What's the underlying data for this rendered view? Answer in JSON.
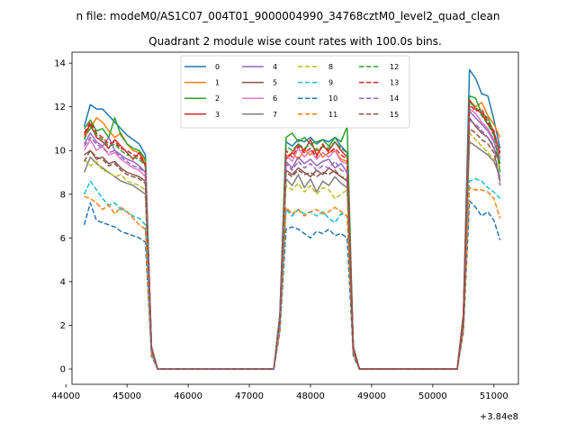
{
  "figure": {
    "suptitle": "n file: modeM0/AS1C07_004T01_9000004990_34768cztM0_level2_quad_clean",
    "title": "Quadrant 2 module wise count rates with 100.0s bins.",
    "offset_label": "+3.84e8"
  },
  "chart_data": {
    "type": "line",
    "title": "Quadrant 2 module wise count rates with 100.0s bins.",
    "xlabel": "",
    "ylabel": "",
    "x_offset": 384000000,
    "xlim": [
      44100,
      51400
    ],
    "ylim": [
      -0.7,
      14.5
    ],
    "xticks": [
      44000,
      45000,
      46000,
      47000,
      48000,
      49000,
      50000,
      51000
    ],
    "xtick_labels": [
      "44000",
      "45000",
      "46000",
      "47000",
      "48000",
      "49000",
      "50000",
      "51000"
    ],
    "yticks": [
      0,
      2,
      4,
      6,
      8,
      10,
      12,
      14
    ],
    "ytick_labels": [
      "0",
      "2",
      "4",
      "6",
      "8",
      "10",
      "12",
      "14"
    ],
    "grid": false,
    "legend": {
      "placement": "top-center",
      "columns": 4
    },
    "x": [
      44300,
      44400,
      44500,
      44600,
      44700,
      44800,
      44900,
      45000,
      45100,
      45200,
      45300,
      45400,
      45500,
      45600,
      45700,
      45800,
      45900,
      46000,
      46100,
      46200,
      46300,
      46400,
      46500,
      46600,
      46700,
      46800,
      46900,
      47000,
      47100,
      47200,
      47300,
      47400,
      47500,
      47600,
      47700,
      47800,
      47900,
      48000,
      48100,
      48200,
      48300,
      48400,
      48500,
      48600,
      48700,
      48800,
      48900,
      49000,
      49100,
      49200,
      49300,
      49400,
      49500,
      49600,
      49700,
      49800,
      49900,
      50000,
      50100,
      50200,
      50300,
      50400,
      50500,
      50600,
      50700,
      50800,
      50900,
      51000,
      51100
    ],
    "series": [
      {
        "name": "0",
        "color": "#1f77b4",
        "dash": "solid",
        "values": [
          11.1,
          12.1,
          11.9,
          11.9,
          11.6,
          11.3,
          11.0,
          10.7,
          10.5,
          10.3,
          9.8,
          1.0,
          0,
          0,
          0,
          0,
          0,
          0,
          0,
          0,
          0,
          0,
          0,
          0,
          0,
          0,
          0,
          0,
          0,
          0,
          0,
          0,
          2.5,
          10.4,
          10.2,
          10.5,
          10.4,
          10.6,
          10.3,
          10.5,
          10.4,
          10.6,
          10.2,
          9.9,
          1.0,
          0,
          0,
          0,
          0,
          0,
          0,
          0,
          0,
          0,
          0,
          0,
          0,
          0,
          0,
          0,
          0,
          0,
          2.5,
          13.7,
          13.3,
          12.6,
          12.5,
          11.4,
          10.1
        ]
      },
      {
        "name": "1",
        "color": "#ff7f0e",
        "dash": "solid",
        "values": [
          10.6,
          11.0,
          11.5,
          11.3,
          10.9,
          10.6,
          10.8,
          10.3,
          10.0,
          9.9,
          9.5,
          1.0,
          0,
          0,
          0,
          0,
          0,
          0,
          0,
          0,
          0,
          0,
          0,
          0,
          0,
          0,
          0,
          0,
          0,
          0,
          0,
          0,
          2.4,
          9.7,
          9.9,
          9.6,
          10.0,
          9.8,
          10.1,
          9.7,
          9.9,
          10.0,
          9.6,
          9.5,
          1.0,
          0,
          0,
          0,
          0,
          0,
          0,
          0,
          0,
          0,
          0,
          0,
          0,
          0,
          0,
          0,
          0,
          0,
          2.4,
          12.3,
          12.0,
          12.2,
          11.6,
          11.2,
          10.6
        ]
      },
      {
        "name": "2",
        "color": "#2ca02c",
        "dash": "solid",
        "values": [
          11.0,
          11.4,
          10.9,
          11.0,
          10.6,
          11.5,
          10.7,
          10.3,
          10.1,
          10.0,
          9.6,
          1.0,
          0,
          0,
          0,
          0,
          0,
          0,
          0,
          0,
          0,
          0,
          0,
          0,
          0,
          0,
          0,
          0,
          0,
          0,
          0,
          0,
          2.5,
          10.6,
          10.8,
          10.4,
          10.6,
          10.3,
          10.4,
          10.5,
          10.2,
          10.6,
          10.4,
          11.1,
          1.0,
          0,
          0,
          0,
          0,
          0,
          0,
          0,
          0,
          0,
          0,
          0,
          0,
          0,
          0,
          0,
          0,
          0,
          2.5,
          12.5,
          12.4,
          11.7,
          11.5,
          10.8,
          9.0
        ]
      },
      {
        "name": "3",
        "color": "#d62728",
        "dash": "solid",
        "values": [
          10.7,
          11.2,
          10.6,
          10.4,
          10.1,
          10.5,
          10.2,
          9.9,
          9.6,
          9.9,
          9.3,
          1.0,
          0,
          0,
          0,
          0,
          0,
          0,
          0,
          0,
          0,
          0,
          0,
          0,
          0,
          0,
          0,
          0,
          0,
          0,
          0,
          0,
          2.4,
          9.6,
          9.9,
          10.3,
          10.0,
          10.5,
          9.8,
          10.2,
          10.0,
          10.4,
          10.0,
          9.7,
          1.0,
          0,
          0,
          0,
          0,
          0,
          0,
          0,
          0,
          0,
          0,
          0,
          0,
          0,
          0,
          0,
          0,
          0,
          2.4,
          12.3,
          11.9,
          11.7,
          11.2,
          10.8,
          9.9
        ]
      },
      {
        "name": "4",
        "color": "#9467bd",
        "dash": "solid",
        "values": [
          10.3,
          10.8,
          10.4,
          10.2,
          10.6,
          10.0,
          9.8,
          9.6,
          9.5,
          9.3,
          9.0,
          1.0,
          0,
          0,
          0,
          0,
          0,
          0,
          0,
          0,
          0,
          0,
          0,
          0,
          0,
          0,
          0,
          0,
          0,
          0,
          0,
          0,
          2.3,
          9.5,
          9.2,
          9.7,
          9.4,
          9.6,
          9.3,
          9.5,
          9.6,
          9.2,
          9.4,
          9.0,
          1.0,
          0,
          0,
          0,
          0,
          0,
          0,
          0,
          0,
          0,
          0,
          0,
          0,
          0,
          0,
          0,
          0,
          0,
          2.3,
          11.8,
          11.5,
          11.2,
          10.9,
          10.4,
          9.6
        ]
      },
      {
        "name": "5",
        "color": "#8c564b",
        "dash": "solid",
        "values": [
          9.8,
          10.0,
          9.6,
          9.7,
          9.4,
          9.5,
          9.2,
          9.0,
          8.9,
          8.8,
          8.6,
          0.9,
          0,
          0,
          0,
          0,
          0,
          0,
          0,
          0,
          0,
          0,
          0,
          0,
          0,
          0,
          0,
          0,
          0,
          0,
          0,
          0,
          2.2,
          9.1,
          8.9,
          9.2,
          9.0,
          8.8,
          9.1,
          8.9,
          9.2,
          9.0,
          8.8,
          8.6,
          0.9,
          0,
          0,
          0,
          0,
          0,
          0,
          0,
          0,
          0,
          0,
          0,
          0,
          0,
          0,
          0,
          0,
          0,
          2.2,
          11.5,
          11.1,
          10.8,
          10.6,
          10.1,
          9.4
        ]
      },
      {
        "name": "6",
        "color": "#e377c2",
        "dash": "solid",
        "values": [
          10.0,
          10.5,
          10.0,
          10.2,
          9.8,
          9.9,
          9.6,
          9.4,
          9.2,
          9.1,
          8.8,
          0.9,
          0,
          0,
          0,
          0,
          0,
          0,
          0,
          0,
          0,
          0,
          0,
          0,
          0,
          0,
          0,
          0,
          0,
          0,
          0,
          0,
          2.3,
          9.8,
          9.5,
          10.1,
          9.7,
          10.0,
          9.6,
          9.9,
          9.7,
          10.0,
          9.5,
          9.4,
          0.9,
          0,
          0,
          0,
          0,
          0,
          0,
          0,
          0,
          0,
          0,
          0,
          0,
          0,
          0,
          0,
          0,
          0,
          2.3,
          11.9,
          11.7,
          11.3,
          11.0,
          10.5,
          9.7
        ]
      },
      {
        "name": "7",
        "color": "#7f7f7f",
        "dash": "solid",
        "values": [
          9.0,
          9.7,
          9.4,
          9.2,
          9.0,
          8.8,
          8.6,
          8.5,
          8.4,
          8.2,
          8.0,
          0.8,
          0,
          0,
          0,
          0,
          0,
          0,
          0,
          0,
          0,
          0,
          0,
          0,
          0,
          0,
          0,
          0,
          0,
          0,
          0,
          0,
          2.1,
          8.7,
          8.4,
          8.9,
          8.3,
          8.7,
          8.1,
          8.6,
          8.4,
          8.8,
          8.5,
          8.3,
          0.8,
          0,
          0,
          0,
          0,
          0,
          0,
          0,
          0,
          0,
          0,
          0,
          0,
          0,
          0,
          0,
          0,
          0,
          2.1,
          10.4,
          10.2,
          10.0,
          9.8,
          9.5,
          8.8
        ]
      },
      {
        "name": "8",
        "color": "#bcbd22",
        "dash": "dashed",
        "values": [
          9.6,
          9.3,
          9.5,
          9.1,
          9.0,
          8.8,
          8.9,
          8.6,
          8.5,
          8.4,
          8.2,
          0.8,
          0,
          0,
          0,
          0,
          0,
          0,
          0,
          0,
          0,
          0,
          0,
          0,
          0,
          0,
          0,
          0,
          0,
          0,
          0,
          0,
          2.1,
          8.4,
          8.2,
          8.5,
          8.1,
          8.4,
          8.0,
          8.3,
          8.2,
          7.8,
          8.0,
          8.2,
          0.8,
          0,
          0,
          0,
          0,
          0,
          0,
          0,
          0,
          0,
          0,
          0,
          0,
          0,
          0,
          0,
          0,
          0,
          2.1,
          10.8,
          10.5,
          10.2,
          9.9,
          9.6,
          9.3
        ]
      },
      {
        "name": "9",
        "color": "#17becf",
        "dash": "dashed",
        "values": [
          8.0,
          8.6,
          8.2,
          7.8,
          7.5,
          7.6,
          7.3,
          7.2,
          7.0,
          6.9,
          6.6,
          0.7,
          0,
          0,
          0,
          0,
          0,
          0,
          0,
          0,
          0,
          0,
          0,
          0,
          0,
          0,
          0,
          0,
          0,
          0,
          0,
          0,
          1.9,
          7.3,
          7.0,
          7.3,
          7.1,
          7.2,
          7.0,
          7.2,
          6.9,
          6.7,
          7.1,
          7.0,
          0.7,
          0,
          0,
          0,
          0,
          0,
          0,
          0,
          0,
          0,
          0,
          0,
          0,
          0,
          0,
          0,
          0,
          0,
          1.9,
          8.6,
          8.7,
          8.6,
          8.3,
          8.1,
          7.8
        ]
      },
      {
        "name": "10",
        "color": "#1f77b4",
        "dash": "dashed",
        "values": [
          6.6,
          7.6,
          6.8,
          6.7,
          6.6,
          6.5,
          6.3,
          6.2,
          6.1,
          6.0,
          5.8,
          0.6,
          0,
          0,
          0,
          0,
          0,
          0,
          0,
          0,
          0,
          0,
          0,
          0,
          0,
          0,
          0,
          0,
          0,
          0,
          0,
          0,
          1.7,
          6.4,
          6.5,
          6.4,
          6.2,
          6.0,
          6.3,
          6.2,
          6.4,
          6.1,
          6.2,
          6.0,
          0.6,
          0,
          0,
          0,
          0,
          0,
          0,
          0,
          0,
          0,
          0,
          0,
          0,
          0,
          0,
          0,
          0,
          0,
          1.7,
          7.7,
          7.4,
          7.0,
          7.2,
          6.8,
          5.9
        ]
      },
      {
        "name": "11",
        "color": "#ff7f0e",
        "dash": "dashed",
        "values": [
          7.9,
          7.8,
          7.6,
          7.3,
          7.5,
          7.1,
          7.4,
          7.2,
          6.9,
          6.6,
          6.4,
          0.7,
          0,
          0,
          0,
          0,
          0,
          0,
          0,
          0,
          0,
          0,
          0,
          0,
          0,
          0,
          0,
          0,
          0,
          0,
          0,
          0,
          1.8,
          7.4,
          7.1,
          7.3,
          7.0,
          7.2,
          7.3,
          7.1,
          7.2,
          7.4,
          7.2,
          7.0,
          0.7,
          0,
          0,
          0,
          0,
          0,
          0,
          0,
          0,
          0,
          0,
          0,
          0,
          0,
          0,
          0,
          0,
          0,
          1.8,
          8.3,
          8.2,
          8.2,
          8.1,
          7.8,
          6.9
        ]
      },
      {
        "name": "12",
        "color": "#2ca02c",
        "dash": "dashed",
        "values": [
          10.5,
          11.1,
          10.7,
          10.5,
          10.2,
          10.3,
          10.0,
          9.8,
          9.7,
          9.6,
          9.3,
          1.0,
          0,
          0,
          0,
          0,
          0,
          0,
          0,
          0,
          0,
          0,
          0,
          0,
          0,
          0,
          0,
          0,
          0,
          0,
          0,
          0,
          2.4,
          10.2,
          10.0,
          10.3,
          10.1,
          10.3,
          10.0,
          10.2,
          10.1,
          10.4,
          10.1,
          9.9,
          1.0,
          0,
          0,
          0,
          0,
          0,
          0,
          0,
          0,
          0,
          0,
          0,
          0,
          0,
          0,
          0,
          0,
          0,
          2.4,
          12.2,
          12.0,
          11.6,
          11.2,
          10.7,
          9.4
        ]
      },
      {
        "name": "13",
        "color": "#d62728",
        "dash": "dashed",
        "values": [
          10.8,
          11.3,
          10.8,
          10.6,
          10.3,
          10.4,
          10.1,
          10.0,
          9.8,
          9.7,
          9.4,
          1.0,
          0,
          0,
          0,
          0,
          0,
          0,
          0,
          0,
          0,
          0,
          0,
          0,
          0,
          0,
          0,
          0,
          0,
          0,
          0,
          0,
          2.4,
          10.0,
          9.7,
          10.2,
          9.9,
          10.1,
          9.7,
          10.3,
          9.9,
          10.1,
          9.8,
          9.6,
          1.0,
          0,
          0,
          0,
          0,
          0,
          0,
          0,
          0,
          0,
          0,
          0,
          0,
          0,
          0,
          0,
          0,
          0,
          2.4,
          12.1,
          11.8,
          11.9,
          11.3,
          10.9,
          9.8
        ]
      },
      {
        "name": "14",
        "color": "#9467bd",
        "dash": "dashed",
        "values": [
          10.2,
          10.6,
          10.3,
          10.1,
          9.9,
          10.0,
          9.7,
          9.5,
          9.3,
          9.2,
          9.0,
          0.9,
          0,
          0,
          0,
          0,
          0,
          0,
          0,
          0,
          0,
          0,
          0,
          0,
          0,
          0,
          0,
          0,
          0,
          0,
          0,
          0,
          2.3,
          9.4,
          9.1,
          9.5,
          9.2,
          9.4,
          9.1,
          9.3,
          9.2,
          9.5,
          9.1,
          9.0,
          0.9,
          0,
          0,
          0,
          0,
          0,
          0,
          0,
          0,
          0,
          0,
          0,
          0,
          0,
          0,
          0,
          0,
          0,
          2.3,
          11.4,
          11.2,
          10.9,
          10.6,
          10.2,
          8.4
        ]
      },
      {
        "name": "15",
        "color": "#8c564b",
        "dash": "dashed",
        "values": [
          9.5,
          10.0,
          9.7,
          9.6,
          9.3,
          9.4,
          9.1,
          8.9,
          8.8,
          8.7,
          8.5,
          0.9,
          0,
          0,
          0,
          0,
          0,
          0,
          0,
          0,
          0,
          0,
          0,
          0,
          0,
          0,
          0,
          0,
          0,
          0,
          0,
          0,
          2.2,
          9.0,
          8.8,
          9.1,
          8.9,
          9.0,
          8.8,
          9.0,
          8.9,
          9.1,
          8.8,
          8.7,
          0.9,
          0,
          0,
          0,
          0,
          0,
          0,
          0,
          0,
          0,
          0,
          0,
          0,
          0,
          0,
          0,
          0,
          0,
          2.2,
          11.0,
          10.8,
          10.5,
          10.3,
          9.9,
          8.6
        ]
      }
    ]
  }
}
